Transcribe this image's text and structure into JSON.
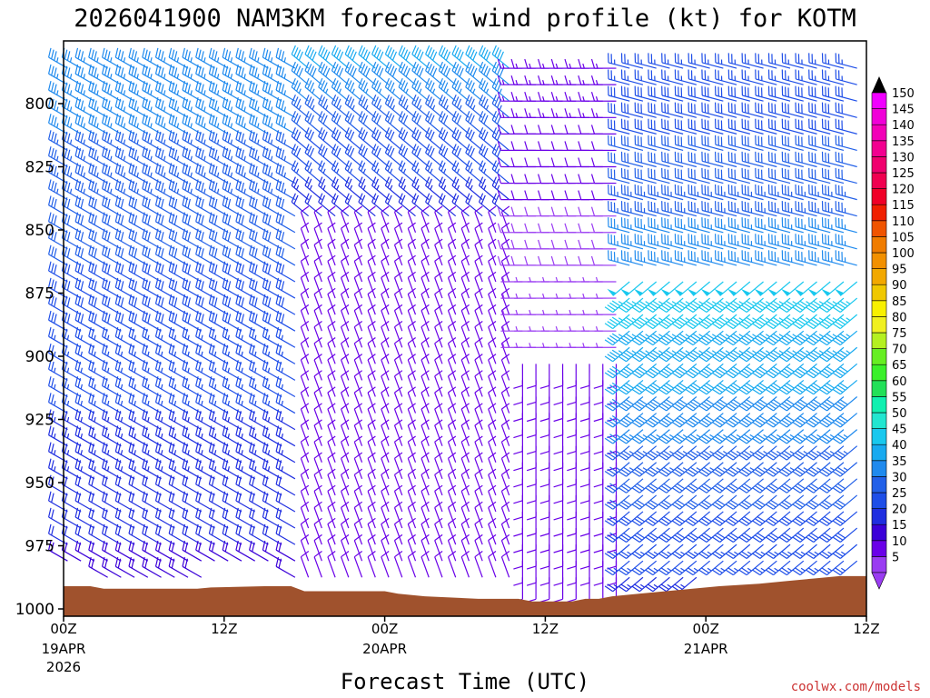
{
  "chart_data": {
    "type": "wind-barb-profile",
    "title": "2026041900 NAM3KM forecast wind profile (kt) for KOTM",
    "xlabel": "Forecast Time (UTC)",
    "ylabel": "",
    "credit": "coolwx.com/models",
    "units": "kt",
    "x_ticks": [
      {
        "hour": 0,
        "label": "00Z",
        "date": "19APR",
        "year": "2026"
      },
      {
        "hour": 12,
        "label": "12Z",
        "date": "",
        "year": ""
      },
      {
        "hour": 24,
        "label": "00Z",
        "date": "20APR",
        "year": ""
      },
      {
        "hour": 36,
        "label": "12Z",
        "date": "",
        "year": ""
      },
      {
        "hour": 48,
        "label": "00Z",
        "date": "21APR",
        "year": ""
      },
      {
        "hour": 60,
        "label": "12Z",
        "date": "",
        "year": ""
      }
    ],
    "xlim": [
      0,
      60
    ],
    "y_ticks": [
      800,
      825,
      850,
      875,
      900,
      925,
      950,
      975,
      1000
    ],
    "ylim": [
      1002,
      780
    ],
    "colorbar": {
      "levels": [
        5,
        10,
        15,
        20,
        25,
        30,
        35,
        40,
        45,
        50,
        55,
        60,
        65,
        70,
        75,
        80,
        85,
        90,
        95,
        100,
        105,
        110,
        115,
        120,
        125,
        130,
        135,
        140,
        145,
        150
      ],
      "colors": [
        "#9a3cf2",
        "#6a00e8",
        "#3b00d8",
        "#1f2ee0",
        "#1e4ee8",
        "#2260e8",
        "#1f8aee",
        "#18aaf0",
        "#19c8ee",
        "#22e6d0",
        "#10f0b0",
        "#22e058",
        "#3af02a",
        "#66ee22",
        "#b4f020",
        "#f0f020",
        "#f8f000",
        "#f0c800",
        "#f2a800",
        "#f29000",
        "#f07c00",
        "#f05400",
        "#f02000",
        "#f00028",
        "#f00050",
        "#f0006e",
        "#f20090",
        "#f200b8",
        "#f000d8",
        "#f000ff"
      ]
    },
    "terrain_color": "#a0522d",
    "surface_pressure": [
      {
        "hour": 0,
        "p": 991
      },
      {
        "hour": 2,
        "p": 991
      },
      {
        "hour": 3,
        "p": 992
      },
      {
        "hour": 10,
        "p": 992
      },
      {
        "hour": 11,
        "p": 991.5
      },
      {
        "hour": 15,
        "p": 991
      },
      {
        "hour": 17,
        "p": 991
      },
      {
        "hour": 18,
        "p": 993
      },
      {
        "hour": 22,
        "p": 993
      },
      {
        "hour": 24,
        "p": 993
      },
      {
        "hour": 25,
        "p": 994
      },
      {
        "hour": 27,
        "p": 995
      },
      {
        "hour": 31,
        "p": 996
      },
      {
        "hour": 34,
        "p": 996
      },
      {
        "hour": 35,
        "p": 997
      },
      {
        "hour": 38,
        "p": 997
      },
      {
        "hour": 39,
        "p": 996
      },
      {
        "hour": 40,
        "p": 996
      },
      {
        "hour": 41,
        "p": 995
      },
      {
        "hour": 43,
        "p": 994
      },
      {
        "hour": 45,
        "p": 993
      },
      {
        "hour": 47,
        "p": 992
      },
      {
        "hour": 49,
        "p": 991
      },
      {
        "hour": 52,
        "p": 990
      },
      {
        "hour": 54,
        "p": 989
      },
      {
        "hour": 56,
        "p": 988
      },
      {
        "hour": 58,
        "p": 987
      },
      {
        "hour": 60,
        "p": 987
      }
    ],
    "wind_regimes": [
      {
        "hour_start": 0,
        "hour_end": 18,
        "p_top": 780,
        "p_bottom": 1000,
        "direction_deg": 300,
        "speed_kt_top": 38,
        "speed_kt_bottom": 18
      },
      {
        "hour_start": 18,
        "hour_end": 34,
        "p_top": 780,
        "p_bottom": 850,
        "direction_deg": 310,
        "speed_kt_top": 42,
        "speed_kt_bottom": 20
      },
      {
        "hour_start": 18,
        "hour_end": 34,
        "p_top": 850,
        "p_bottom": 1000,
        "direction_deg": 340,
        "speed_kt_top": 12,
        "speed_kt_bottom": 10
      },
      {
        "hour_start": 34,
        "hour_end": 42,
        "p_top": 780,
        "p_bottom": 900,
        "direction_deg": 270,
        "speed_kt_top": 15,
        "speed_kt_bottom": 5
      },
      {
        "hour_start": 34,
        "hour_end": 42,
        "p_top": 900,
        "p_bottom": 1000,
        "direction_deg": 180,
        "speed_kt_top": 12,
        "speed_kt_bottom": 10
      },
      {
        "hour_start": 42,
        "hour_end": 60,
        "p_top": 780,
        "p_bottom": 870,
        "direction_deg": 285,
        "speed_kt_top": 25,
        "speed_kt_bottom": 38
      },
      {
        "hour_start": 42,
        "hour_end": 60,
        "p_top": 870,
        "p_bottom": 1000,
        "direction_deg": 230,
        "speed_kt_top": 48,
        "speed_kt_bottom": 22
      }
    ]
  }
}
